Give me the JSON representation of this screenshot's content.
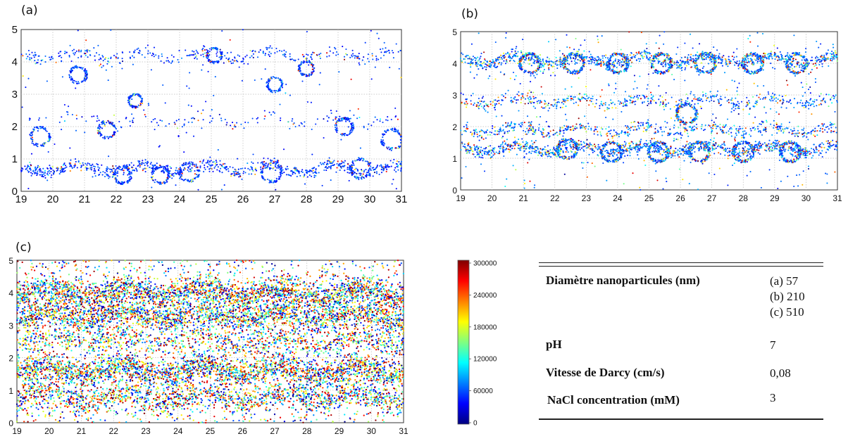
{
  "chart_data": [
    {
      "type": "scatter",
      "panel_label": "(a)",
      "x_ticks": [
        19,
        20,
        21,
        22,
        23,
        24,
        25,
        26,
        27,
        28,
        29,
        30,
        31
      ],
      "y_ticks": [
        0,
        1,
        2,
        3,
        4,
        5
      ],
      "xlim": [
        19,
        31
      ],
      "ylim": [
        0,
        5
      ],
      "grid": true,
      "density": "sparse",
      "bands": [
        {
          "y": 0.7,
          "weight": 1.0
        },
        {
          "y": 4.2,
          "weight": 0.45
        },
        {
          "y": 2.2,
          "weight": 0.2
        }
      ],
      "rings": [
        {
          "x": 19.6,
          "y": 1.7,
          "r": 0.28
        },
        {
          "x": 20.8,
          "y": 3.6,
          "r": 0.25
        },
        {
          "x": 21.7,
          "y": 1.9,
          "r": 0.25
        },
        {
          "x": 22.6,
          "y": 2.8,
          "r": 0.2
        },
        {
          "x": 22.2,
          "y": 0.5,
          "r": 0.25
        },
        {
          "x": 23.4,
          "y": 0.5,
          "r": 0.25
        },
        {
          "x": 24.3,
          "y": 0.6,
          "r": 0.28
        },
        {
          "x": 26.9,
          "y": 0.6,
          "r": 0.3
        },
        {
          "x": 27.0,
          "y": 3.3,
          "r": 0.22
        },
        {
          "x": 28.0,
          "y": 3.8,
          "r": 0.22
        },
        {
          "x": 29.2,
          "y": 2.0,
          "r": 0.25
        },
        {
          "x": 29.7,
          "y": 0.7,
          "r": 0.3
        },
        {
          "x": 30.7,
          "y": 1.6,
          "r": 0.3
        },
        {
          "x": 25.1,
          "y": 4.2,
          "r": 0.22
        }
      ]
    },
    {
      "type": "scatter",
      "panel_label": "(b)",
      "x_ticks": [
        19,
        20,
        21,
        22,
        23,
        24,
        25,
        26,
        27,
        28,
        29,
        30,
        31
      ],
      "y_ticks": [
        0,
        1,
        2,
        3,
        4,
        5
      ],
      "xlim": [
        19,
        31
      ],
      "ylim": [
        0,
        5
      ],
      "grid": true,
      "density": "medium",
      "bands": [
        {
          "y": 1.3,
          "weight": 1.0
        },
        {
          "y": 4.1,
          "weight": 0.9
        },
        {
          "y": 2.8,
          "weight": 0.45
        },
        {
          "y": 1.9,
          "weight": 0.5
        }
      ],
      "rings": [
        {
          "x": 21.2,
          "y": 4.0,
          "r": 0.3
        },
        {
          "x": 22.6,
          "y": 4.0,
          "r": 0.3
        },
        {
          "x": 24.0,
          "y": 4.0,
          "r": 0.3
        },
        {
          "x": 25.4,
          "y": 4.0,
          "r": 0.3
        },
        {
          "x": 26.8,
          "y": 4.0,
          "r": 0.3
        },
        {
          "x": 28.3,
          "y": 4.0,
          "r": 0.3
        },
        {
          "x": 29.7,
          "y": 4.0,
          "r": 0.3
        },
        {
          "x": 22.4,
          "y": 1.3,
          "r": 0.3
        },
        {
          "x": 23.8,
          "y": 1.2,
          "r": 0.3
        },
        {
          "x": 25.3,
          "y": 1.2,
          "r": 0.3
        },
        {
          "x": 26.6,
          "y": 1.2,
          "r": 0.3
        },
        {
          "x": 28.0,
          "y": 1.2,
          "r": 0.3
        },
        {
          "x": 29.5,
          "y": 1.2,
          "r": 0.3
        },
        {
          "x": 26.2,
          "y": 2.4,
          "r": 0.3
        }
      ]
    },
    {
      "type": "scatter",
      "panel_label": "(c)",
      "x_ticks": [
        19,
        20,
        21,
        22,
        23,
        24,
        25,
        26,
        27,
        28,
        29,
        30,
        31
      ],
      "y_ticks": [
        0,
        1,
        2,
        3,
        4,
        5
      ],
      "xlim": [
        19,
        31
      ],
      "ylim": [
        0,
        5
      ],
      "grid": true,
      "density": "dense",
      "bands": [
        {
          "y": 4.0,
          "weight": 1.0
        },
        {
          "y": 3.3,
          "weight": 0.9
        },
        {
          "y": 1.6,
          "weight": 1.0
        },
        {
          "y": 0.8,
          "weight": 0.6
        },
        {
          "y": 2.5,
          "weight": 0.4
        }
      ],
      "rings": [],
      "colorbar": {
        "min": 0,
        "max": 300000,
        "ticks": [
          "300000",
          "240000",
          "180000",
          "120000",
          "60000",
          "0"
        ],
        "colors": [
          "#00007f",
          "#0000ff",
          "#0080ff",
          "#00ffff",
          "#80ff80",
          "#ffff00",
          "#ff8000",
          "#ff0000",
          "#7f0000"
        ]
      }
    }
  ],
  "params_table": {
    "rows": [
      {
        "label": "Diamètre nanoparticules (nm)",
        "values": [
          "(a) 57",
          "(b) 210",
          "(c) 510"
        ]
      },
      {
        "label": "pH",
        "values": [
          "7"
        ]
      },
      {
        "label": "Vitesse de Darcy (cm/s)",
        "values": [
          "0,08"
        ]
      },
      {
        "label": "NaCl concentration (mM)",
        "values": [
          "3"
        ]
      }
    ]
  }
}
